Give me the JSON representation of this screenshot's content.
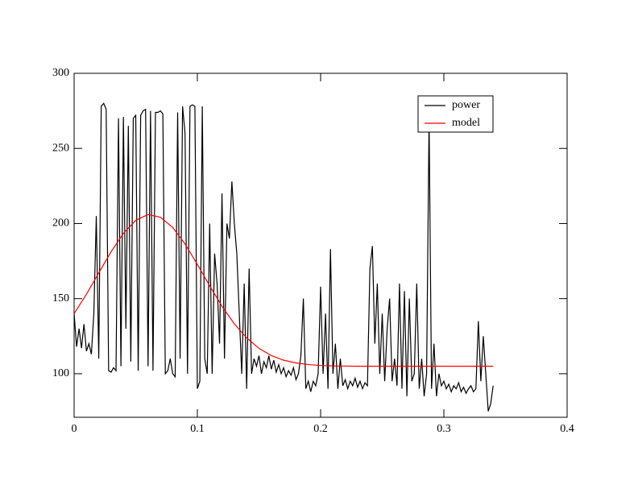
{
  "chart_data": {
    "type": "line",
    "xlim": [
      0,
      0.4
    ],
    "xticks": [
      0,
      0.1,
      0.2,
      0.3,
      0.4
    ],
    "ylim": [
      71,
      300
    ],
    "yticks": [
      100,
      150,
      200,
      250,
      300
    ],
    "legend": "upper right",
    "series": [
      {
        "name": "power",
        "color": "#000000",
        "x": [
          0,
          0.002,
          0.004,
          0.006,
          0.008,
          0.01,
          0.012,
          0.014,
          0.016,
          0.018,
          0.02,
          0.022,
          0.024,
          0.026,
          0.028,
          0.03,
          0.032,
          0.034,
          0.036,
          0.038,
          0.04,
          0.042,
          0.044,
          0.046,
          0.048,
          0.05,
          0.052,
          0.054,
          0.056,
          0.058,
          0.06,
          0.062,
          0.064,
          0.066,
          0.068,
          0.07,
          0.072,
          0.074,
          0.076,
          0.078,
          0.08,
          0.082,
          0.084,
          0.086,
          0.088,
          0.09,
          0.092,
          0.094,
          0.096,
          0.098,
          0.1,
          0.102,
          0.104,
          0.106,
          0.108,
          0.11,
          0.112,
          0.114,
          0.116,
          0.118,
          0.12,
          0.122,
          0.124,
          0.126,
          0.128,
          0.13,
          0.132,
          0.134,
          0.136,
          0.138,
          0.14,
          0.142,
          0.144,
          0.146,
          0.148,
          0.15,
          0.152,
          0.154,
          0.156,
          0.158,
          0.16,
          0.162,
          0.164,
          0.166,
          0.168,
          0.17,
          0.172,
          0.174,
          0.176,
          0.178,
          0.18,
          0.182,
          0.184,
          0.186,
          0.188,
          0.19,
          0.192,
          0.194,
          0.196,
          0.198,
          0.2,
          0.202,
          0.204,
          0.206,
          0.208,
          0.21,
          0.212,
          0.214,
          0.216,
          0.218,
          0.22,
          0.222,
          0.224,
          0.226,
          0.228,
          0.23,
          0.232,
          0.234,
          0.236,
          0.238,
          0.24,
          0.242,
          0.244,
          0.246,
          0.248,
          0.25,
          0.252,
          0.254,
          0.256,
          0.258,
          0.26,
          0.262,
          0.264,
          0.266,
          0.268,
          0.27,
          0.272,
          0.274,
          0.276,
          0.278,
          0.28,
          0.282,
          0.284,
          0.286,
          0.288,
          0.29,
          0.292,
          0.294,
          0.296,
          0.298,
          0.3,
          0.302,
          0.304,
          0.306,
          0.308,
          0.31,
          0.312,
          0.314,
          0.316,
          0.318,
          0.32,
          0.322,
          0.324,
          0.326,
          0.328,
          0.33,
          0.332,
          0.334,
          0.336,
          0.338,
          0.34
        ],
        "values": [
          140,
          118,
          130,
          117,
          133,
          115,
          120,
          113,
          140,
          205,
          110,
          278,
          280,
          276,
          102,
          101,
          104,
          102,
          270,
          105,
          271,
          130,
          265,
          108,
          270,
          272,
          102,
          272,
          275,
          276,
          105,
          275,
          102,
          274,
          274,
          275,
          273,
          100,
          102,
          110,
          100,
          98,
          274,
          110,
          278,
          260,
          100,
          278,
          279,
          278,
          90,
          95,
          278,
          110,
          100,
          200,
          100,
          180,
          160,
          120,
          220,
          110,
          200,
          190,
          228,
          200,
          180,
          140,
          100,
          160,
          90,
          170,
          100,
          110,
          105,
          112,
          100,
          108,
          104,
          112,
          103,
          109,
          101,
          106,
          100,
          104,
          98,
          102,
          99,
          104,
          96,
          100,
          112,
          150,
          90,
          95,
          88,
          95,
          92,
          100,
          158,
          100,
          140,
          90,
          183,
          100,
          120,
          90,
          110,
          92,
          96,
          90,
          95,
          92,
          97,
          91,
          95,
          90,
          94,
          92,
          170,
          185,
          120,
          160,
          100,
          140,
          95,
          130,
          150,
          95,
          110,
          92,
          160,
          90,
          155,
          85,
          150,
          95,
          100,
          160,
          90,
          110,
          85,
          100,
          270,
          90,
          120,
          85,
          100,
          92,
          95,
          90,
          93,
          88,
          92,
          90,
          94,
          88,
          91,
          87,
          90,
          92,
          88,
          90,
          135,
          95,
          125,
          100,
          75,
          80,
          92
        ]
      },
      {
        "name": "model",
        "color": "#ff0000",
        "x": [
          0,
          0.01,
          0.02,
          0.03,
          0.04,
          0.05,
          0.06,
          0.07,
          0.08,
          0.09,
          0.1,
          0.11,
          0.12,
          0.13,
          0.14,
          0.15,
          0.16,
          0.17,
          0.18,
          0.19,
          0.2,
          0.21,
          0.22,
          0.23,
          0.24,
          0.25,
          0.26,
          0.27,
          0.28,
          0.29,
          0.3,
          0.31,
          0.32,
          0.33,
          0.34
        ],
        "values": [
          140,
          152.9,
          167.1,
          181.2,
          193.4,
          202.1,
          206,
          204.2,
          197.4,
          186.4,
          172.8,
          158.5,
          144.9,
          133.2,
          123.9,
          116.9,
          112.1,
          109,
          107.2,
          106.1,
          105.5,
          105.2,
          105.1,
          105,
          105,
          105,
          105,
          105,
          105,
          105,
          105,
          105,
          105,
          105,
          105
        ]
      }
    ]
  }
}
